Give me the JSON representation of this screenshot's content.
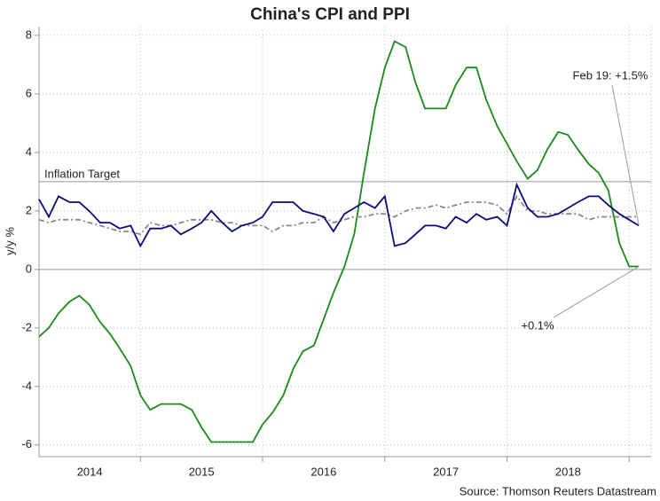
{
  "chart_data": {
    "type": "line",
    "title": "China's CPI and PPI",
    "y_label": "y/y %",
    "source": "Source: Thomson Reuters Datastream",
    "x": [
      2014.17,
      2014.25,
      2014.33,
      2014.42,
      2014.5,
      2014.58,
      2014.67,
      2014.75,
      2014.83,
      2014.92,
      2015.0,
      2015.08,
      2015.17,
      2015.25,
      2015.33,
      2015.42,
      2015.5,
      2015.58,
      2015.67,
      2015.75,
      2015.83,
      2015.92,
      2016.0,
      2016.08,
      2016.17,
      2016.25,
      2016.33,
      2016.42,
      2016.5,
      2016.58,
      2016.67,
      2016.75,
      2016.83,
      2016.92,
      2017.0,
      2017.08,
      2017.17,
      2017.25,
      2017.33,
      2017.42,
      2017.5,
      2017.58,
      2017.67,
      2017.75,
      2017.83,
      2017.92,
      2018.0,
      2018.08,
      2018.17,
      2018.25,
      2018.33,
      2018.42,
      2018.5,
      2018.58,
      2018.67,
      2018.75,
      2018.83,
      2018.92,
      2019.0,
      2019.08
    ],
    "series": [
      {
        "color": "#1a8a1a",
        "dash": "none",
        "values": [
          -2.3,
          -2.0,
          -1.5,
          -1.1,
          -0.9,
          -1.2,
          -1.8,
          -2.2,
          -2.7,
          -3.3,
          -4.3,
          -4.8,
          -4.6,
          -4.6,
          -4.6,
          -4.8,
          -5.4,
          -5.9,
          -5.9,
          -5.9,
          -5.9,
          -5.9,
          -5.3,
          -4.9,
          -4.3,
          -3.4,
          -2.8,
          -2.6,
          -1.7,
          -0.8,
          0.1,
          1.2,
          3.3,
          5.5,
          6.9,
          7.8,
          7.6,
          6.4,
          5.5,
          5.5,
          5.5,
          6.3,
          6.9,
          6.9,
          5.8,
          4.9,
          4.3,
          3.7,
          3.1,
          3.4,
          4.1,
          4.7,
          4.6,
          4.1,
          3.6,
          3.3,
          2.7,
          0.9,
          0.1,
          0.1
        ]
      },
      {
        "color": "#888888",
        "dash": "6 3 2 3",
        "values": [
          1.7,
          1.6,
          1.7,
          1.7,
          1.7,
          1.6,
          1.5,
          1.4,
          1.3,
          1.3,
          1.2,
          1.6,
          1.5,
          1.5,
          1.6,
          1.7,
          1.7,
          1.7,
          1.6,
          1.6,
          1.5,
          1.5,
          1.5,
          1.3,
          1.5,
          1.5,
          1.6,
          1.6,
          1.8,
          1.6,
          1.7,
          1.8,
          1.8,
          1.9,
          1.9,
          1.8,
          2.0,
          2.1,
          2.1,
          2.2,
          2.1,
          2.2,
          2.3,
          2.3,
          2.3,
          2.2,
          1.9,
          2.5,
          2.0,
          2.0,
          1.9,
          1.9,
          1.9,
          1.9,
          1.7,
          1.8,
          1.8,
          1.8,
          1.8,
          1.8
        ]
      },
      {
        "color": "#0b0b7a",
        "dash": "none",
        "values": [
          2.4,
          1.8,
          2.5,
          2.3,
          2.3,
          2.0,
          1.6,
          1.6,
          1.4,
          1.5,
          0.8,
          1.4,
          1.4,
          1.5,
          1.2,
          1.4,
          1.6,
          2.0,
          1.6,
          1.3,
          1.5,
          1.6,
          1.8,
          2.3,
          2.3,
          2.3,
          2.0,
          1.9,
          1.8,
          1.3,
          1.9,
          2.1,
          2.3,
          2.1,
          2.5,
          0.8,
          0.9,
          1.2,
          1.5,
          1.5,
          1.4,
          1.8,
          1.6,
          1.9,
          1.7,
          1.8,
          1.5,
          2.9,
          2.1,
          1.8,
          1.8,
          1.9,
          2.1,
          2.3,
          2.5,
          2.5,
          2.2,
          1.9,
          1.7,
          1.5
        ]
      }
    ],
    "xlim": [
      2014.17,
      2019.18
    ],
    "xticks": [
      2015,
      2016,
      2017,
      2018,
      2019
    ],
    "year_labels": [
      2014,
      2015,
      2016,
      2017,
      2018
    ],
    "ylim": [
      -6.4,
      8.3
    ],
    "yticks": [
      -6,
      -4,
      -2,
      0,
      2,
      4,
      6,
      8
    ],
    "grid": true,
    "reference_lines": [
      {
        "value": 3,
        "label": "Inflation Target"
      }
    ],
    "annotations": [
      {
        "text": "Feb 19: +1.5%",
        "x": 2019.08,
        "y": 1.5
      },
      {
        "text": "+0.1%",
        "x": 2019.08,
        "y": 0.1
      }
    ]
  }
}
